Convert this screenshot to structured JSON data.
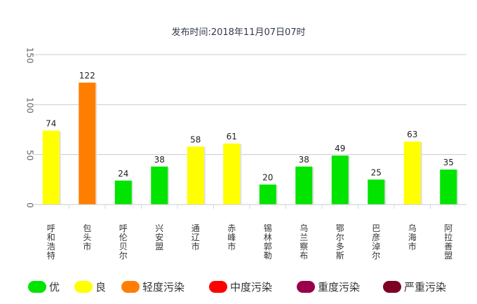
{
  "chart_data": {
    "type": "bar",
    "subtitle": "发布时间:2018年11月07日07时",
    "ylim": [
      0,
      150
    ],
    "yticks": [
      0,
      50,
      100,
      150
    ],
    "categories": [
      "呼和浩特市",
      "包头市",
      "呼伦贝尔市",
      "兴安盟",
      "通辽市",
      "赤峰市",
      "锡林郭勒盟",
      "乌兰察布市",
      "鄂尔多斯市",
      "巴彦淖尔市",
      "乌海市",
      "阿拉善盟"
    ],
    "values": [
      74,
      122,
      24,
      38,
      58,
      61,
      20,
      38,
      49,
      25,
      63,
      35
    ],
    "levels": [
      "良",
      "轻度污染",
      "优",
      "优",
      "良",
      "良",
      "优",
      "优",
      "优",
      "优",
      "良",
      "优"
    ],
    "legend": [
      {
        "label": "优",
        "color": "#00e400"
      },
      {
        "label": "良",
        "color": "#ffff00"
      },
      {
        "label": "轻度污染",
        "color": "#ff7e00"
      },
      {
        "label": "中度污染",
        "color": "#ff0000"
      },
      {
        "label": "重度污染",
        "color": "#99004c"
      },
      {
        "label": "严重污染",
        "color": "#7e0023"
      }
    ],
    "grid": true,
    "legend_position": "bottom"
  }
}
